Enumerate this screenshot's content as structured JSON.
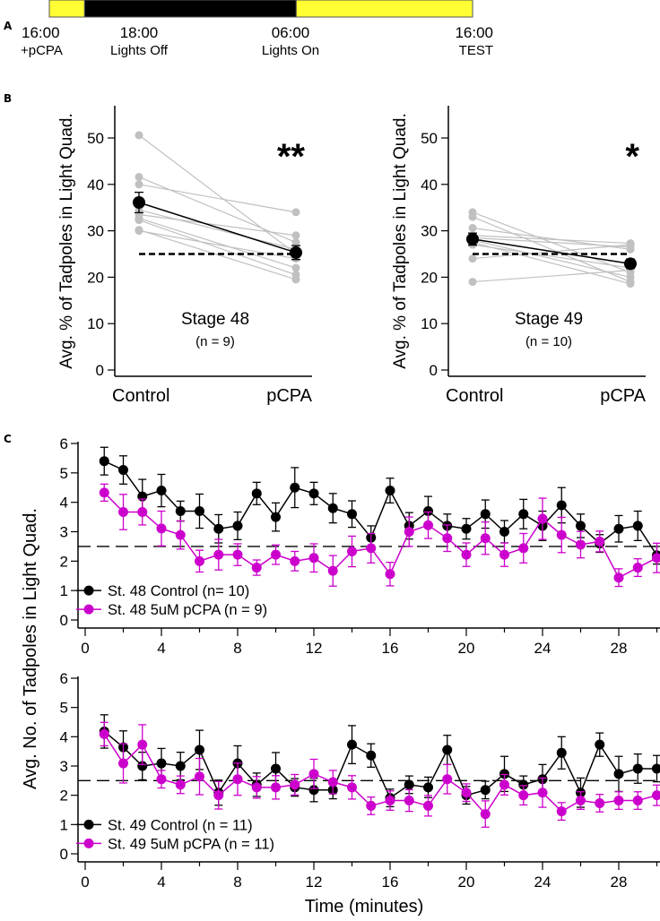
{
  "panels": {
    "A": {
      "letter": "A",
      "timeline": {
        "segments": [
          {
            "phase": "light",
            "color": "#ffff33",
            "from_hour": 16,
            "to_hour": 18
          },
          {
            "phase": "dark",
            "color": "#000000",
            "from_hour": 18,
            "to_hour": 30
          },
          {
            "phase": "light",
            "color": "#ffff33",
            "from_hour": 30,
            "to_hour": 40
          }
        ],
        "labels": [
          {
            "time": "16:00",
            "event": "+pCPA"
          },
          {
            "time": "18:00",
            "event": "Lights Off"
          },
          {
            "time": "06:00",
            "event": "Lights On"
          },
          {
            "time": "16:00",
            "event": "TEST"
          }
        ]
      }
    },
    "B": {
      "letter": "B"
    },
    "C": {
      "letter": "C"
    }
  },
  "chart_data": [
    {
      "type": "scatter",
      "panel": "B-left",
      "title": "Stage 48",
      "subtitle": "(n = 9)",
      "significance": "**",
      "xlabel": "",
      "ylabel": "Avg. % of Tadpoles in Light Quad.",
      "categories": [
        "Control",
        "pCPA"
      ],
      "ylim": [
        0,
        55
      ],
      "yticks": [
        0,
        10,
        20,
        30,
        40,
        50
      ],
      "chance_level": 25,
      "individual_pairs": [
        [
          50.6,
          25.0
        ],
        [
          41.6,
          27.5
        ],
        [
          40.0,
          34.0
        ],
        [
          33.5,
          29.0
        ],
        [
          32.7,
          22.0
        ],
        [
          32.3,
          20.5
        ],
        [
          30.2,
          19.5
        ],
        [
          30.0,
          24.0
        ],
        [
          34.5,
          26.0
        ]
      ],
      "mean": {
        "values": [
          36.1,
          25.3
        ],
        "sem": [
          2.2,
          1.5
        ]
      },
      "colors": {
        "individual": "#c0c0c0",
        "mean": "#000000"
      }
    },
    {
      "type": "scatter",
      "panel": "B-right",
      "title": "Stage 49",
      "subtitle": "(n = 10)",
      "significance": "*",
      "xlabel": "",
      "ylabel": "Avg. % of Tadpoles in Light Quad.",
      "categories": [
        "Control",
        "pCPA"
      ],
      "ylim": [
        0,
        55
      ],
      "yticks": [
        0,
        10,
        20,
        30,
        40,
        50
      ],
      "chance_level": 25,
      "individual_pairs": [
        [
          34.0,
          21.0
        ],
        [
          33.0,
          19.0
        ],
        [
          30.6,
          26.0
        ],
        [
          29.0,
          27.3
        ],
        [
          28.5,
          26.5
        ],
        [
          27.5,
          18.6
        ],
        [
          27.0,
          22.0
        ],
        [
          24.0,
          27.0
        ],
        [
          19.0,
          21.5
        ],
        [
          28.0,
          20.0
        ]
      ],
      "mean": {
        "values": [
          28.2,
          22.9
        ],
        "sem": [
          1.3,
          1.0
        ]
      },
      "colors": {
        "individual": "#c0c0c0",
        "mean": "#000000"
      }
    },
    {
      "type": "line",
      "panel": "C-top",
      "xlabel": "",
      "ylabel": "Avg. No. of Tadpoles in Light Quad.",
      "xlim": [
        -0.5,
        30
      ],
      "xticks": [
        0,
        4,
        8,
        12,
        16,
        20,
        24,
        28
      ],
      "ylim": [
        0,
        6
      ],
      "yticks": [
        0,
        1,
        2,
        3,
        4,
        5,
        6
      ],
      "chance_level": 2.5,
      "x": [
        1,
        2,
        3,
        4,
        5,
        6,
        7,
        8,
        9,
        10,
        11,
        12,
        13,
        14,
        15,
        16,
        17,
        18,
        19,
        20,
        21,
        22,
        23,
        24,
        25,
        26,
        27,
        28,
        29,
        30
      ],
      "legend_position": "bottom-left",
      "series": [
        {
          "name": "St. 48 Control (n= 10)",
          "color": "#000000",
          "values": [
            5.4,
            5.1,
            4.2,
            4.4,
            3.7,
            3.7,
            3.1,
            3.2,
            4.3,
            3.5,
            4.5,
            4.3,
            3.8,
            3.6,
            2.8,
            4.4,
            3.2,
            3.7,
            3.2,
            3.1,
            3.6,
            3.0,
            3.6,
            3.2,
            3.9,
            3.2,
            2.6,
            3.1,
            3.2,
            2.2
          ],
          "errors": [
            0.47,
            0.48,
            0.58,
            0.55,
            0.34,
            0.58,
            0.48,
            0.47,
            0.38,
            0.48,
            0.68,
            0.38,
            0.5,
            0.45,
            0.4,
            0.42,
            0.45,
            0.5,
            0.4,
            0.35,
            0.48,
            0.38,
            0.5,
            0.5,
            0.6,
            0.4,
            0.3,
            0.45,
            0.5,
            0.3
          ]
        },
        {
          "name": "St. 48 5uM pCPA (n = 9)",
          "color": "#cc00cc",
          "values": [
            4.33,
            3.67,
            3.67,
            3.11,
            2.89,
            2.0,
            2.22,
            2.22,
            1.78,
            2.22,
            2.0,
            2.11,
            1.67,
            2.33,
            2.44,
            1.56,
            3.0,
            3.22,
            2.78,
            2.22,
            2.78,
            2.22,
            2.44,
            3.44,
            2.89,
            2.56,
            2.67,
            1.44,
            1.78,
            2.11
          ],
          "errors": [
            0.29,
            0.6,
            0.44,
            0.59,
            0.48,
            0.37,
            0.52,
            0.37,
            0.26,
            0.33,
            0.33,
            0.48,
            0.52,
            0.52,
            0.5,
            0.4,
            0.5,
            0.45,
            0.45,
            0.4,
            0.55,
            0.4,
            0.5,
            0.7,
            0.6,
            0.45,
            0.35,
            0.3,
            0.3,
            0.5
          ]
        }
      ]
    },
    {
      "type": "line",
      "panel": "C-bottom",
      "xlabel": "Time (minutes)",
      "ylabel": "Avg. No. of Tadpoles in Light Quad.",
      "xlim": [
        -0.5,
        30
      ],
      "xticks": [
        0,
        4,
        8,
        12,
        16,
        20,
        24,
        28
      ],
      "ylim": [
        0,
        6
      ],
      "yticks": [
        0,
        1,
        2,
        3,
        4,
        5,
        6
      ],
      "chance_level": 2.5,
      "x": [
        1,
        2,
        3,
        4,
        5,
        6,
        7,
        8,
        9,
        10,
        11,
        12,
        13,
        14,
        15,
        16,
        17,
        18,
        19,
        20,
        21,
        22,
        23,
        24,
        25,
        26,
        27,
        28,
        29,
        30
      ],
      "legend_position": "bottom-left",
      "series": [
        {
          "name": "St. 49 Control (n = 11)",
          "color": "#000000",
          "values": [
            4.18,
            3.64,
            3.0,
            3.09,
            3.0,
            3.55,
            2.09,
            3.09,
            2.36,
            2.91,
            2.27,
            2.18,
            2.18,
            3.73,
            3.36,
            1.91,
            2.36,
            2.27,
            3.55,
            2.0,
            2.18,
            2.73,
            2.36,
            2.55,
            3.45,
            2.09,
            3.73,
            2.73,
            2.91,
            2.91
          ],
          "errors": [
            0.57,
            0.56,
            0.47,
            0.51,
            0.47,
            0.67,
            0.43,
            0.6,
            0.4,
            0.55,
            0.3,
            0.4,
            0.3,
            0.65,
            0.4,
            0.3,
            0.3,
            0.35,
            0.5,
            0.3,
            0.3,
            0.6,
            0.3,
            0.5,
            0.55,
            0.5,
            0.4,
            0.6,
            0.5,
            0.45
          ]
        },
        {
          "name": "St. 49 5uM pCPA (n = 11)",
          "color": "#cc00cc",
          "values": [
            4.09,
            3.09,
            3.73,
            2.55,
            2.36,
            2.64,
            2.0,
            2.55,
            2.27,
            2.27,
            2.36,
            2.73,
            2.45,
            2.27,
            1.64,
            1.82,
            1.82,
            1.64,
            2.55,
            2.09,
            1.36,
            2.36,
            2.0,
            2.09,
            1.45,
            1.82,
            1.73,
            1.82,
            1.82,
            2.0
          ],
          "errors": [
            0.4,
            0.67,
            0.68,
            0.3,
            0.3,
            0.62,
            0.47,
            0.55,
            0.37,
            0.4,
            0.35,
            0.5,
            0.4,
            0.4,
            0.3,
            0.33,
            0.37,
            0.35,
            0.5,
            0.3,
            0.45,
            0.35,
            0.33,
            0.5,
            0.3,
            0.3,
            0.3,
            0.3,
            0.3,
            0.35
          ]
        }
      ]
    }
  ]
}
